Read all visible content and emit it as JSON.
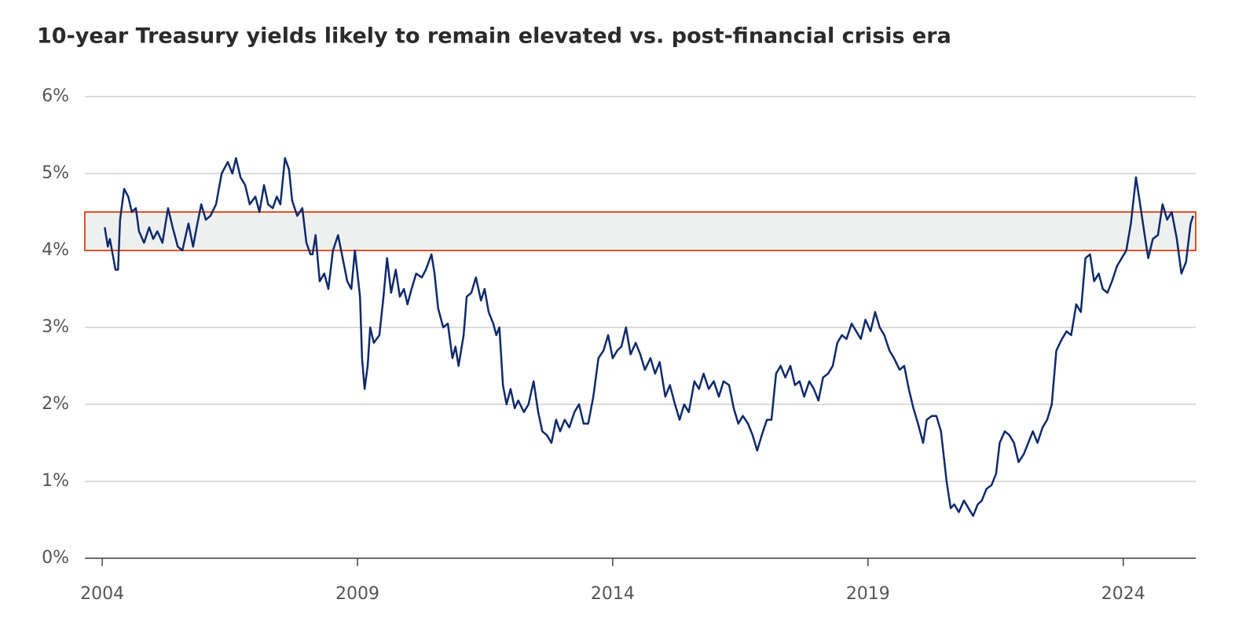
{
  "chart_data": {
    "type": "line",
    "title": "10-year Treasury yields likely to remain elevated vs. post-financial crisis era",
    "color": "#0f2a6b",
    "x": [
      2004.05,
      2004.11,
      2004.15,
      2004.26,
      2004.31,
      2004.35,
      2004.43,
      2004.51,
      2004.58,
      2004.66,
      2004.72,
      2004.82,
      2004.92,
      2005.0,
      2005.08,
      2005.18,
      2005.29,
      2005.38,
      2005.48,
      2005.57,
      2005.69,
      2005.78,
      2005.85,
      2005.94,
      2006.03,
      2006.12,
      2006.23,
      2006.34,
      2006.46,
      2006.55,
      2006.62,
      2006.71,
      2006.8,
      2006.89,
      2007.0,
      2007.08,
      2007.17,
      2007.25,
      2007.34,
      2007.42,
      2007.49,
      2007.58,
      2007.66,
      2007.72,
      2007.82,
      2007.92,
      2008.0,
      2008.08,
      2008.12,
      2008.18,
      2008.26,
      2008.35,
      2008.43,
      2008.52,
      2008.62,
      2008.71,
      2008.8,
      2008.88,
      2008.95,
      2009.0,
      2009.05,
      2009.09,
      2009.14,
      2009.2,
      2009.25,
      2009.32,
      2009.43,
      2009.51,
      2009.58,
      2009.66,
      2009.75,
      2009.83,
      2009.91,
      2009.98,
      2010.06,
      2010.15,
      2010.26,
      2010.34,
      2010.45,
      2010.51,
      2010.58,
      2010.68,
      2010.77,
      2010.86,
      2010.92,
      2010.98,
      2011.08,
      2011.14,
      2011.23,
      2011.32,
      2011.42,
      2011.49,
      2011.57,
      2011.66,
      2011.72,
      2011.78,
      2011.85,
      2011.92,
      2012.0,
      2012.08,
      2012.15,
      2012.26,
      2012.35,
      2012.45,
      2012.54,
      2012.62,
      2012.71,
      2012.8,
      2012.89,
      2012.97,
      2013.06,
      2013.15,
      2013.25,
      2013.34,
      2013.43,
      2013.52,
      2013.62,
      2013.72,
      2013.82,
      2013.91,
      2014.0,
      2014.09,
      2014.17,
      2014.26,
      2014.35,
      2014.45,
      2014.54,
      2014.63,
      2014.74,
      2014.83,
      2014.92,
      2015.03,
      2015.12,
      2015.22,
      2015.31,
      2015.4,
      2015.49,
      2015.6,
      2015.69,
      2015.78,
      2015.88,
      2015.98,
      2016.08,
      2016.17,
      2016.28,
      2016.37,
      2016.46,
      2016.55,
      2016.65,
      2016.74,
      2016.83,
      2016.92,
      2017.02,
      2017.11,
      2017.2,
      2017.29,
      2017.38,
      2017.48,
      2017.57,
      2017.66,
      2017.75,
      2017.85,
      2017.94,
      2018.03,
      2018.12,
      2018.22,
      2018.31,
      2018.4,
      2018.49,
      2018.58,
      2018.68,
      2018.77,
      2018.86,
      2018.95,
      2019.05,
      2019.14,
      2019.23,
      2019.32,
      2019.42,
      2019.51,
      2019.62,
      2019.71,
      2019.8,
      2019.89,
      2019.98,
      2020.08,
      2020.15,
      2020.25,
      2020.34,
      2020.43,
      2020.54,
      2020.62,
      2020.69,
      2020.78,
      2020.88,
      2020.97,
      2021.06,
      2021.15,
      2021.23,
      2021.32,
      2021.42,
      2021.51,
      2021.58,
      2021.68,
      2021.77,
      2021.86,
      2021.95,
      2022.05,
      2022.14,
      2022.23,
      2022.32,
      2022.42,
      2022.51,
      2022.6,
      2022.69,
      2022.8,
      2022.89,
      2022.98,
      2023.08,
      2023.17,
      2023.26,
      2023.35,
      2023.43,
      2023.52,
      2023.6,
      2023.69,
      2023.78,
      2023.88,
      2023.97,
      2024.06,
      2024.15,
      2024.25,
      2024.32,
      2024.42,
      2024.49,
      2024.58,
      2024.68,
      2024.77,
      2024.86,
      2024.95,
      2025.05,
      2025.14,
      2025.23,
      2025.32,
      2025.37
    ],
    "values": [
      4.3,
      4.05,
      4.15,
      3.75,
      3.75,
      4.4,
      4.8,
      4.7,
      4.5,
      4.55,
      4.25,
      4.1,
      4.3,
      4.15,
      4.25,
      4.1,
      4.55,
      4.3,
      4.05,
      4.0,
      4.35,
      4.05,
      4.3,
      4.6,
      4.4,
      4.45,
      4.6,
      5.0,
      5.15,
      5.0,
      5.2,
      4.95,
      4.85,
      4.6,
      4.7,
      4.5,
      4.85,
      4.6,
      4.55,
      4.7,
      4.6,
      5.2,
      5.05,
      4.65,
      4.45,
      4.55,
      4.1,
      3.95,
      3.95,
      4.2,
      3.6,
      3.7,
      3.5,
      4.0,
      4.2,
      3.9,
      3.6,
      3.5,
      4.0,
      3.7,
      3.4,
      2.6,
      2.2,
      2.5,
      3.0,
      2.8,
      2.9,
      3.4,
      3.9,
      3.45,
      3.75,
      3.4,
      3.5,
      3.3,
      3.5,
      3.7,
      3.65,
      3.75,
      3.95,
      3.7,
      3.25,
      3.0,
      3.05,
      2.6,
      2.75,
      2.5,
      2.9,
      3.4,
      3.45,
      3.65,
      3.35,
      3.5,
      3.2,
      3.05,
      2.9,
      3.0,
      2.25,
      2.0,
      2.2,
      1.95,
      2.05,
      1.9,
      2.0,
      2.3,
      1.9,
      1.65,
      1.6,
      1.5,
      1.8,
      1.65,
      1.8,
      1.7,
      1.9,
      2.0,
      1.75,
      1.75,
      2.1,
      2.6,
      2.7,
      2.9,
      2.6,
      2.7,
      2.75,
      3.0,
      2.65,
      2.8,
      2.65,
      2.45,
      2.6,
      2.4,
      2.55,
      2.1,
      2.25,
      2.0,
      1.8,
      2.0,
      1.9,
      2.3,
      2.2,
      2.4,
      2.2,
      2.3,
      2.1,
      2.3,
      2.25,
      1.95,
      1.75,
      1.85,
      1.75,
      1.6,
      1.4,
      1.6,
      1.8,
      1.8,
      2.4,
      2.5,
      2.35,
      2.5,
      2.25,
      2.3,
      2.1,
      2.3,
      2.2,
      2.05,
      2.35,
      2.4,
      2.5,
      2.8,
      2.9,
      2.85,
      3.05,
      2.95,
      2.85,
      3.1,
      2.95,
      3.2,
      3.0,
      2.9,
      2.7,
      2.6,
      2.45,
      2.5,
      2.2,
      1.95,
      1.75,
      1.5,
      1.8,
      1.85,
      1.85,
      1.65,
      1.0,
      0.65,
      0.7,
      0.6,
      0.75,
      0.65,
      0.55,
      0.7,
      0.75,
      0.9,
      0.95,
      1.1,
      1.5,
      1.65,
      1.6,
      1.5,
      1.25,
      1.35,
      1.5,
      1.65,
      1.5,
      1.7,
      1.8,
      2.0,
      2.7,
      2.85,
      2.95,
      2.9,
      3.3,
      3.2,
      3.9,
      3.95,
      3.6,
      3.7,
      3.5,
      3.45,
      3.6,
      3.8,
      3.9,
      4.0,
      4.35,
      4.95,
      4.65,
      4.2,
      3.9,
      4.15,
      4.2,
      4.6,
      4.4,
      4.5,
      4.15,
      3.7,
      3.85,
      4.35,
      4.45
    ],
    "shaded_range": [
      4,
      4.5
    ],
    "shaded_fill": "#eef0f0",
    "shaded_stroke": "#e0522b",
    "xlim": [
      2003.66,
      2025.42
    ],
    "xticks": [
      2004,
      2009,
      2014,
      2019,
      2024
    ],
    "ylim": [
      0,
      6
    ],
    "yticks": [
      {
        "value": 0,
        "label": "0%"
      },
      {
        "value": 1,
        "label": "1%"
      },
      {
        "value": 2,
        "label": "2%"
      },
      {
        "value": 3,
        "label": "3%"
      },
      {
        "value": 4,
        "label": "4%"
      },
      {
        "value": 5,
        "label": "5%"
      },
      {
        "value": 6,
        "label": "6%"
      }
    ],
    "grid": true
  }
}
